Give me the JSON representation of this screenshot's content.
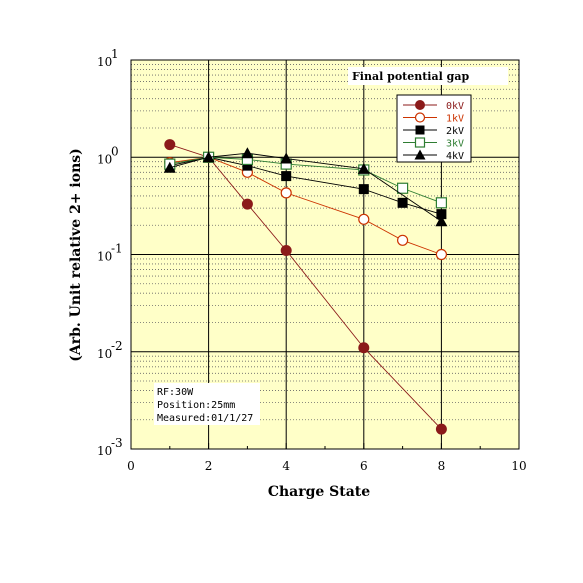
{
  "chart_data": {
    "type": "line",
    "xlabel": "Charge State",
    "ylabel": "(Arb. Unit relative 2+ ions)",
    "xlim": [
      0,
      10
    ],
    "ylim": [
      0.001,
      10
    ],
    "yscale": "log",
    "x_ticks": [
      "0",
      "2",
      "4",
      "6",
      "8",
      "10"
    ],
    "y_ticks": [
      {
        "base": "10",
        "exp": "-3"
      },
      {
        "base": "10",
        "exp": "-2"
      },
      {
        "base": "10",
        "exp": "-1"
      },
      {
        "base": "10",
        "exp": "0"
      },
      {
        "base": "10",
        "exp": "1"
      }
    ],
    "grid": true,
    "legend_position": "top-right",
    "legend_title": "Final potential gap",
    "series": [
      {
        "name": "0kV",
        "color": "#8b1a1a",
        "marker": "filled-circle",
        "x": [
          1,
          2,
          3,
          4,
          6,
          8
        ],
        "y": [
          1.35,
          1.0,
          0.33,
          0.11,
          0.011,
          0.0016
        ]
      },
      {
        "name": "1kV",
        "color": "#cc3300",
        "marker": "open-circle",
        "x": [
          1,
          2,
          3,
          4,
          6,
          7,
          8
        ],
        "y": [
          0.88,
          1.0,
          0.7,
          0.43,
          0.23,
          0.14,
          0.1
        ]
      },
      {
        "name": "2kV",
        "color": "#000000",
        "marker": "filled-square",
        "x": [
          1,
          2,
          3,
          4,
          6,
          7,
          8
        ],
        "y": [
          0.82,
          1.0,
          0.82,
          0.64,
          0.47,
          0.34,
          0.26
        ]
      },
      {
        "name": "3kV",
        "color": "#2e7d32",
        "marker": "open-square",
        "x": [
          1,
          2,
          3,
          4,
          6,
          7,
          8
        ],
        "y": [
          0.85,
          1.0,
          0.95,
          0.85,
          0.74,
          0.48,
          0.34
        ]
      },
      {
        "name": "4kV",
        "color": "#000000",
        "marker": "filled-triangle",
        "x": [
          1,
          2,
          3,
          4,
          6,
          8
        ],
        "y": [
          0.78,
          1.0,
          1.1,
          0.97,
          0.76,
          0.22
        ]
      }
    ],
    "info_lines": [
      "RF:30W",
      "Position:25mm",
      "Measured:01/1/27"
    ]
  },
  "colors": {
    "plot_background": "#ffffc8",
    "grid_major": "#000000",
    "grid_minor": "#666666"
  }
}
